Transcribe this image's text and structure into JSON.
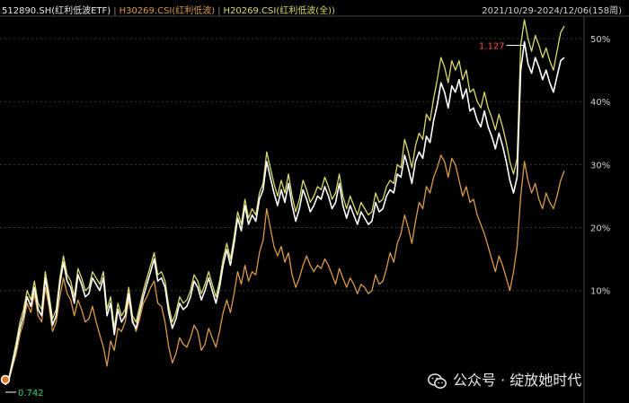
{
  "header": {
    "series_labels": [
      "512890.SH(红利低波ETF)",
      "H30269.CSI(红利低波)",
      "H20269.CSI(红利低波(全))"
    ],
    "series_colors": [
      "#e8e8e8",
      "#d89a4a",
      "#d9d96a"
    ],
    "date_range": "2021/10/29-2024/12/06(158周)"
  },
  "watermark": {
    "text": "公众号 · 绽放她时代",
    "icon": "wechat-icon"
  },
  "chart_data": {
    "type": "line",
    "ylim": [
      -7,
      53
    ],
    "y_ticks": [
      10,
      20,
      30,
      40,
      50
    ],
    "y_tick_labels": [
      "10%",
      "20%",
      "30%",
      "40%",
      "50%"
    ],
    "annotations": {
      "high": "1.127",
      "low": "0.742"
    },
    "series": [
      {
        "name": "512890.SH(红利低波ETF)",
        "color": "#ffffff",
        "values": [
          -5.0,
          -4.0,
          -1.5,
          1.0,
          4.0,
          6.0,
          9.0,
          7.5,
          10.5,
          7.0,
          6.0,
          12.0,
          8.5,
          4.5,
          6.0,
          11.0,
          14.5,
          11.5,
          10.5,
          8.0,
          12.5,
          11.0,
          9.0,
          9.5,
          12.0,
          11.0,
          10.0,
          12.0,
          6.0,
          8.0,
          3.0,
          7.0,
          5.0,
          6.0,
          9.5,
          5.0,
          4.0,
          6.5,
          9.0,
          11.0,
          13.0,
          15.0,
          11.5,
          12.0,
          10.5,
          6.5,
          4.0,
          5.5,
          8.0,
          7.0,
          7.5,
          9.0,
          11.5,
          10.5,
          8.5,
          10.0,
          12.0,
          10.0,
          8.0,
          10.5,
          14.0,
          16.5,
          14.0,
          17.5,
          21.5,
          19.5,
          23.5,
          20.5,
          22.0,
          21.0,
          24.5,
          26.0,
          30.5,
          28.0,
          25.5,
          23.5,
          26.0,
          24.0,
          27.0,
          23.5,
          21.0,
          23.0,
          26.0,
          24.5,
          22.5,
          23.5,
          25.0,
          24.5,
          26.5,
          25.0,
          23.0,
          24.0,
          27.0,
          23.5,
          21.5,
          23.5,
          22.0,
          20.5,
          22.5,
          21.5,
          20.5,
          21.0,
          24.0,
          22.5,
          23.0,
          25.0,
          26.0,
          25.5,
          28.5,
          28.0,
          31.5,
          29.5,
          27.0,
          30.5,
          32.0,
          31.0,
          34.5,
          33.5,
          37.0,
          39.5,
          43.0,
          41.5,
          39.0,
          42.5,
          41.5,
          43.5,
          40.5,
          42.0,
          38.5,
          39.0,
          37.0,
          36.0,
          38.5,
          36.0,
          34.5,
          32.5,
          35.0,
          33.0,
          30.5,
          27.5,
          25.5,
          28.0,
          45.0,
          49.5,
          46.0,
          44.5,
          47.0,
          45.5,
          43.5,
          45.0,
          43.0,
          41.5,
          44.0,
          46.5,
          47.0
        ]
      },
      {
        "name": "H20269.CSI(红利低波(全))",
        "color": "#d9d96a",
        "values": [
          -5.0,
          -3.8,
          -1.0,
          1.8,
          5.0,
          7.0,
          10.0,
          8.5,
          11.5,
          8.0,
          7.0,
          13.0,
          9.5,
          5.5,
          7.0,
          12.0,
          15.5,
          12.5,
          11.5,
          9.0,
          13.5,
          12.0,
          10.0,
          10.5,
          13.0,
          12.0,
          11.0,
          13.0,
          7.0,
          9.0,
          4.0,
          8.0,
          6.0,
          7.0,
          10.5,
          6.0,
          5.0,
          7.5,
          10.0,
          12.0,
          14.0,
          16.0,
          12.5,
          13.0,
          11.5,
          7.5,
          5.0,
          6.5,
          9.0,
          8.0,
          8.5,
          10.0,
          12.5,
          11.5,
          9.5,
          11.0,
          13.0,
          11.0,
          9.0,
          11.5,
          15.0,
          17.5,
          15.0,
          18.5,
          22.5,
          20.5,
          24.5,
          21.5,
          23.0,
          22.0,
          25.5,
          27.0,
          32.0,
          29.5,
          27.0,
          25.0,
          27.5,
          25.5,
          28.5,
          25.0,
          22.5,
          24.5,
          27.5,
          26.0,
          24.0,
          25.0,
          26.5,
          26.0,
          28.0,
          26.5,
          24.5,
          25.5,
          28.5,
          25.0,
          23.0,
          25.0,
          23.5,
          22.0,
          24.0,
          23.0,
          22.0,
          22.5,
          25.5,
          24.0,
          24.5,
          26.5,
          27.5,
          27.0,
          30.0,
          29.5,
          34.0,
          32.0,
          29.5,
          33.0,
          35.0,
          34.0,
          38.0,
          37.0,
          40.5,
          43.5,
          47.0,
          45.5,
          43.0,
          46.5,
          45.0,
          46.5,
          43.5,
          45.0,
          41.5,
          42.0,
          40.0,
          39.0,
          41.5,
          39.0,
          37.5,
          35.5,
          38.0,
          36.0,
          33.5,
          30.5,
          28.5,
          31.0,
          49.0,
          53.0,
          50.0,
          48.0,
          50.5,
          49.0,
          47.0,
          48.5,
          46.5,
          45.0,
          48.0,
          51.0,
          52.0
        ]
      },
      {
        "name": "H30269.CSI(红利低波)",
        "color": "#d89a4a",
        "values": [
          -5.0,
          -4.2,
          -2.0,
          0.0,
          3.0,
          5.0,
          8.0,
          6.5,
          9.5,
          6.0,
          5.0,
          10.5,
          7.5,
          3.5,
          5.0,
          9.0,
          12.0,
          9.5,
          8.5,
          6.0,
          8.5,
          7.0,
          5.0,
          5.5,
          7.5,
          5.0,
          3.0,
          1.0,
          -2.0,
          2.0,
          0.5,
          4.0,
          3.5,
          5.0,
          8.5,
          5.5,
          3.5,
          5.5,
          8.0,
          9.0,
          10.5,
          11.5,
          8.0,
          7.5,
          5.0,
          1.0,
          -1.5,
          0.0,
          2.5,
          1.5,
          1.0,
          2.5,
          4.5,
          3.5,
          0.5,
          1.5,
          4.0,
          2.5,
          1.0,
          3.5,
          6.5,
          8.5,
          6.5,
          9.5,
          13.0,
          11.0,
          14.0,
          11.5,
          13.0,
          12.5,
          16.0,
          18.0,
          23.0,
          20.0,
          17.0,
          15.5,
          17.0,
          14.5,
          16.0,
          12.5,
          10.5,
          12.0,
          14.0,
          15.5,
          14.0,
          13.0,
          14.0,
          13.5,
          15.0,
          14.0,
          12.5,
          11.0,
          13.5,
          12.0,
          10.5,
          12.0,
          11.0,
          9.5,
          11.0,
          10.5,
          9.5,
          10.0,
          12.5,
          11.0,
          11.5,
          13.5,
          16.0,
          14.5,
          17.5,
          19.0,
          22.0,
          20.0,
          17.5,
          21.0,
          24.0,
          23.0,
          26.5,
          25.5,
          28.0,
          29.5,
          31.5,
          30.5,
          28.0,
          31.0,
          30.0,
          27.5,
          25.0,
          26.5,
          24.0,
          24.5,
          22.0,
          20.5,
          19.0,
          17.0,
          15.0,
          13.0,
          15.5,
          14.0,
          12.0,
          10.0,
          13.0,
          17.0,
          25.0,
          30.5,
          27.5,
          25.5,
          27.0,
          24.5,
          23.0,
          25.5,
          24.0,
          23.0,
          25.0,
          27.5,
          29.0
        ]
      }
    ]
  }
}
